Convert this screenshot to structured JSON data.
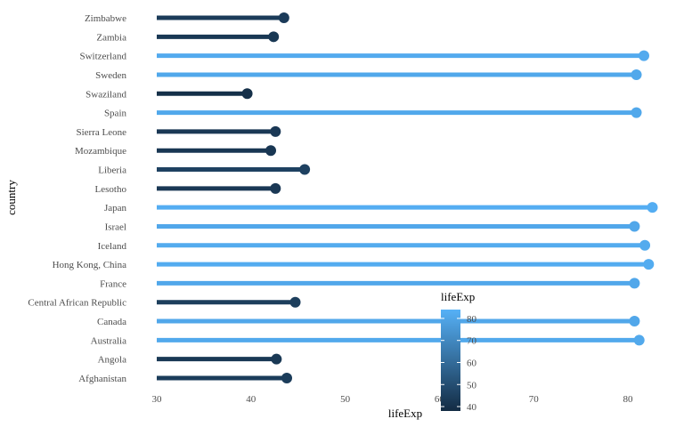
{
  "chart_data": {
    "type": "lollipop",
    "xlabel": "lifeExp",
    "ylabel": "country",
    "xlim": [
      30,
      83
    ],
    "x_ticks": [
      30,
      40,
      50,
      60,
      70,
      80
    ],
    "categories": [
      "Zimbabwe",
      "Zambia",
      "Switzerland",
      "Sweden",
      "Swaziland",
      "Spain",
      "Sierra Leone",
      "Mozambique",
      "Liberia",
      "Lesotho",
      "Japan",
      "Israel",
      "Iceland",
      "Hong Kong, China",
      "France",
      "Central African Republic",
      "Canada",
      "Australia",
      "Angola",
      "Afghanistan"
    ],
    "values": [
      43.5,
      42.4,
      81.7,
      80.9,
      39.6,
      80.9,
      42.6,
      42.1,
      45.7,
      42.6,
      82.6,
      80.7,
      81.8,
      82.2,
      80.7,
      44.7,
      80.7,
      81.2,
      42.7,
      43.8
    ],
    "legend": {
      "title": "lifeExp",
      "ticks": [
        40,
        50,
        60,
        70,
        80
      ],
      "range": [
        38,
        84
      ],
      "low_color": "#132B43",
      "high_color": "#56B1F7",
      "placement": "bottom-center"
    },
    "grid": false
  }
}
